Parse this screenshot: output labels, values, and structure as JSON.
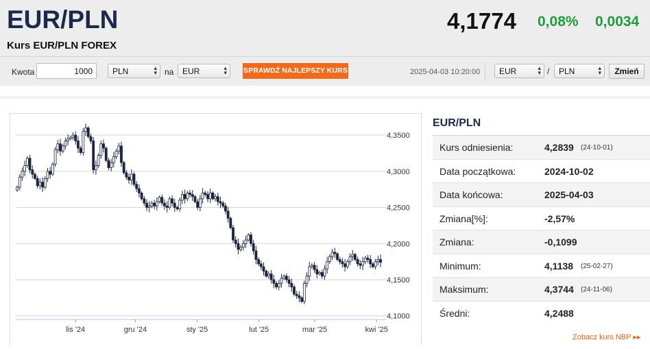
{
  "header": {
    "pair": "EUR/PLN",
    "subtitle": "Kurs EUR/PLN FOREX",
    "rate": "4,1774",
    "change_pct": "0,08%",
    "change_abs": "0,0034"
  },
  "converter": {
    "amount_label": "Kwota",
    "amount_value": "1000",
    "from_currency": "PLN",
    "to_label": "na",
    "to_currency": "EUR",
    "cta_label": "SPRAWDŹ NAJLEPSZY KURS",
    "timestamp": "2025-04-03 10:20:00",
    "pair_base": "EUR",
    "pair_separator": "/",
    "pair_quote": "PLN",
    "change_button": "Zmień"
  },
  "stats": {
    "title": "EUR/PLN",
    "rows": [
      {
        "label": "Kurs odniesienia:",
        "value": "4,2839",
        "date": "(24-10-01)"
      },
      {
        "label": "Data początkowa:",
        "value": "2024-10-02",
        "date": ""
      },
      {
        "label": "Data końcowa:",
        "value": "2025-04-03",
        "date": ""
      },
      {
        "label": "Zmiana[%]:",
        "value": "-2,57%",
        "date": ""
      },
      {
        "label": "Zmiana:",
        "value": "-0,1099",
        "date": ""
      },
      {
        "label": "Minimum:",
        "value": "4,1138",
        "date": "(25-02-27)"
      },
      {
        "label": "Maksimum:",
        "value": "4,3744",
        "date": "(24-11-06)"
      },
      {
        "label": "Średni:",
        "value": "4,2488",
        "date": ""
      }
    ]
  },
  "nbp_link": "Zobacz kurs NBP ▸▸",
  "colors": {
    "accent_orange": "#f26a1b",
    "positive_green": "#1f9d3c",
    "title_navy": "#1b2a4a",
    "candle_dark": "#1c2540"
  },
  "chart_data": {
    "type": "candlestick",
    "title": "",
    "xlabel": "",
    "ylabel": "",
    "ylim": [
      4.095,
      4.37
    ],
    "yticks": [
      "4,3500",
      "4,3000",
      "4,2500",
      "4,2000",
      "4,1500",
      "4,1000"
    ],
    "ytick_values": [
      4.35,
      4.3,
      4.25,
      4.2,
      4.15,
      4.1
    ],
    "xticks": [
      "lis '24",
      "gru '24",
      "sty '25",
      "lut '25",
      "mar '25",
      "kwi '25"
    ],
    "xtick_dates": [
      "2024-11-01",
      "2024-12-01",
      "2025-01-01",
      "2025-02-01",
      "2025-03-01",
      "2025-04-01"
    ],
    "x_range": [
      "2024-10-02",
      "2025-04-03"
    ],
    "grid": true,
    "closes": [
      4.278,
      4.292,
      4.3,
      4.308,
      4.318,
      4.302,
      4.296,
      4.29,
      4.28,
      4.285,
      4.278,
      4.29,
      4.3,
      4.296,
      4.31,
      4.33,
      4.338,
      4.328,
      4.335,
      4.342,
      4.345,
      4.347,
      4.35,
      4.342,
      4.332,
      4.326,
      4.355,
      4.36,
      4.348,
      4.342,
      4.302,
      4.308,
      4.322,
      4.338,
      4.332,
      4.315,
      4.305,
      4.312,
      4.32,
      4.328,
      4.335,
      4.312,
      4.298,
      4.292,
      4.288,
      4.296,
      4.282,
      4.276,
      4.27,
      4.262,
      4.256,
      4.25,
      4.252,
      4.256,
      4.252,
      4.258,
      4.264,
      4.256,
      4.252,
      4.25,
      4.262,
      4.256,
      4.25,
      4.248,
      4.26,
      4.268,
      4.262,
      4.27,
      4.268,
      4.265,
      4.258,
      4.25,
      4.262,
      4.27,
      4.268,
      4.262,
      4.27,
      4.262,
      4.265,
      4.258,
      4.256,
      4.252,
      4.245,
      4.235,
      4.222,
      4.205,
      4.2,
      4.192,
      4.195,
      4.2,
      4.205,
      4.212,
      4.2,
      4.19,
      4.178,
      4.172,
      4.168,
      4.162,
      4.155,
      4.158,
      4.15,
      4.145,
      4.14,
      4.145,
      4.152,
      4.155,
      4.15,
      4.145,
      4.14,
      4.13,
      4.128,
      4.125,
      4.12,
      4.145,
      4.155,
      4.168,
      4.17,
      4.164,
      4.158,
      4.16,
      4.155,
      4.165,
      4.175,
      4.182,
      4.188,
      4.186,
      4.178,
      4.175,
      4.172,
      4.168,
      4.175,
      4.182,
      4.185,
      4.178,
      4.172,
      4.17,
      4.175,
      4.18,
      4.178,
      4.172,
      4.168,
      4.175,
      4.178,
      4.174
    ],
    "max": 4.3744,
    "min": 4.1138
  }
}
